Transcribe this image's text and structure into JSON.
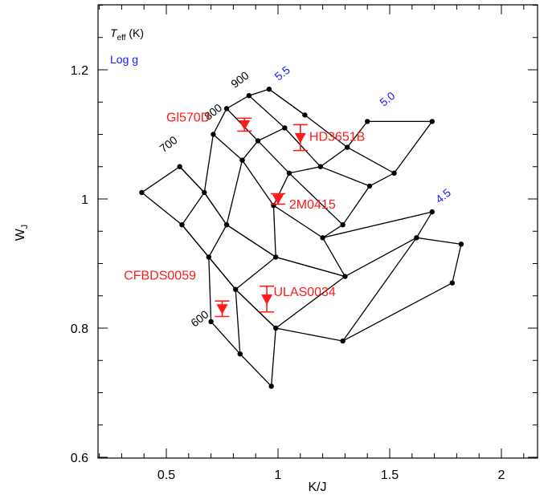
{
  "chart_data": {
    "type": "scatter",
    "xlabel": "K/J",
    "ylabel": "W",
    "ylabel_sub": "J",
    "xlim": [
      0.2,
      2.2
    ],
    "ylim": [
      0.6,
      1.3
    ],
    "xticks": [
      0.5,
      1,
      1.5,
      2
    ],
    "xtick_labels": [
      "0.5",
      "1",
      "1.5",
      "2"
    ],
    "yticks": [
      0.6,
      0.8,
      1.0,
      1.2
    ],
    "ytick_labels": [
      "0.6",
      "0.8",
      "1",
      "1.2"
    ],
    "x_minor_step": 0.1,
    "y_minor_step": 0.05,
    "grid": false,
    "legend": {
      "position": "top-left",
      "teff_prefix": "T",
      "teff_sub": "eff",
      "teff_suffix": " (K)",
      "logg": "Log g",
      "teff_color": "#000000",
      "logg_color": "#1a1aff"
    },
    "model_grid": {
      "temperatures": [
        600,
        700,
        800,
        900
      ],
      "temperature_labels": [
        "600",
        "700",
        "800",
        "900"
      ],
      "gravities": [
        4.5,
        5.0,
        5.5
      ],
      "gravity_labels": [
        "4.5",
        "5.0",
        "5.5"
      ],
      "teff_nodes": [
        [
          [
            0.7,
            0.81
          ],
          [
            0.83,
            0.76
          ],
          [
            0.97,
            0.71
          ]
        ],
        [
          [
            0.57,
            0.96
          ],
          [
            0.69,
            0.91
          ],
          [
            0.81,
            0.86
          ],
          [
            0.99,
            0.8
          ],
          [
            1.29,
            0.78
          ],
          [
            1.78,
            0.87
          ]
        ],
        [
          [
            0.39,
            1.01
          ],
          [
            0.56,
            1.05
          ],
          [
            0.67,
            1.01
          ],
          [
            0.77,
            0.96
          ],
          [
            0.99,
            0.91
          ],
          [
            1.3,
            0.88
          ],
          [
            1.62,
            0.94
          ],
          [
            1.82,
            0.93
          ]
        ],
        [
          [
            0.71,
            1.1
          ],
          [
            0.84,
            1.06
          ],
          [
            0.98,
            0.99
          ],
          [
            1.2,
            0.94
          ],
          [
            1.69,
            0.98
          ]
        ],
        [
          [
            0.77,
            1.14
          ],
          [
            0.91,
            1.09
          ],
          [
            1.05,
            1.04
          ],
          [
            1.29,
            0.96
          ]
        ],
        [
          [
            0.87,
            1.16
          ],
          [
            1.03,
            1.11
          ],
          [
            1.19,
            1.05
          ],
          [
            1.41,
            1.02
          ]
        ],
        [
          [
            0.96,
            1.17
          ],
          [
            1.12,
            1.13
          ],
          [
            1.31,
            1.08
          ],
          [
            1.52,
            1.04
          ]
        ],
        [
          [
            1.4,
            1.12
          ],
          [
            1.69,
            1.12
          ]
        ]
      ],
      "gravity_nodes": [
        [
          [
            0.57,
            0.96
          ],
          [
            0.67,
            1.01
          ],
          [
            0.71,
            1.1
          ],
          [
            0.77,
            1.14
          ],
          [
            0.87,
            1.16
          ],
          [
            0.96,
            1.17
          ],
          [
            1.12,
            1.13
          ]
        ],
        [
          [
            0.69,
            0.91
          ],
          [
            0.77,
            0.96
          ],
          [
            0.84,
            1.06
          ],
          [
            0.91,
            1.09
          ],
          [
            1.03,
            1.11
          ]
        ],
        [
          [
            0.81,
            0.86
          ],
          [
            0.99,
            0.91
          ],
          [
            0.98,
            0.99
          ],
          [
            1.05,
            1.04
          ],
          [
            1.19,
            1.05
          ],
          [
            1.31,
            1.08
          ],
          [
            1.4,
            1.12
          ]
        ],
        [
          [
            0.99,
            0.8
          ],
          [
            1.3,
            0.88
          ],
          [
            1.2,
            0.94
          ],
          [
            1.29,
            0.96
          ],
          [
            1.41,
            1.02
          ],
          [
            1.52,
            1.04
          ],
          [
            1.69,
            1.12
          ]
        ],
        [
          [
            1.29,
            0.78
          ],
          [
            1.62,
            0.94
          ],
          [
            1.69,
            0.98
          ]
        ],
        [
          [
            1.78,
            0.87
          ],
          [
            1.82,
            0.93
          ]
        ],
        [
          [
            0.39,
            1.01
          ],
          [
            0.57,
            0.96
          ],
          [
            0.69,
            0.91
          ],
          [
            0.81,
            0.86
          ],
          [
            0.99,
            0.8
          ]
        ],
        [
          [
            0.56,
            1.05
          ],
          [
            0.67,
            1.01
          ],
          [
            0.77,
            0.96
          ],
          [
            0.99,
            0.91
          ],
          [
            1.3,
            0.88
          ]
        ],
        [
          [
            0.7,
            0.81
          ],
          [
            0.69,
            0.91
          ]
        ],
        [
          [
            0.83,
            0.76
          ],
          [
            0.81,
            0.86
          ]
        ],
        [
          [
            0.97,
            0.71
          ],
          [
            0.99,
            0.8
          ]
        ]
      ],
      "nodes": [
        [
          0.39,
          1.01
        ],
        [
          0.56,
          1.05
        ],
        [
          0.57,
          0.96
        ],
        [
          0.67,
          1.01
        ],
        [
          0.69,
          0.91
        ],
        [
          0.7,
          0.81
        ],
        [
          0.71,
          1.1
        ],
        [
          0.77,
          1.14
        ],
        [
          0.77,
          0.96
        ],
        [
          0.81,
          0.86
        ],
        [
          0.83,
          0.76
        ],
        [
          0.84,
          1.06
        ],
        [
          0.87,
          1.16
        ],
        [
          0.91,
          1.09
        ],
        [
          0.96,
          1.17
        ],
        [
          0.97,
          0.71
        ],
        [
          0.98,
          0.99
        ],
        [
          0.99,
          0.91
        ],
        [
          0.99,
          0.8
        ],
        [
          1.03,
          1.11
        ],
        [
          1.05,
          1.04
        ],
        [
          1.12,
          1.13
        ],
        [
          1.19,
          1.05
        ],
        [
          1.2,
          0.94
        ],
        [
          1.29,
          0.78
        ],
        [
          1.29,
          0.96
        ],
        [
          1.3,
          0.88
        ],
        [
          1.31,
          1.08
        ],
        [
          1.4,
          1.12
        ],
        [
          1.41,
          1.02
        ],
        [
          1.52,
          1.04
        ],
        [
          1.62,
          0.94
        ],
        [
          1.69,
          1.12
        ],
        [
          1.69,
          0.98
        ],
        [
          1.78,
          0.87
        ],
        [
          1.82,
          0.93
        ]
      ],
      "temperature_label_anchors": [
        [
          0.66,
          0.81
        ],
        [
          0.52,
          1.08
        ],
        [
          0.72,
          1.13
        ],
        [
          0.84,
          1.18
        ]
      ],
      "gravity_label_anchors": [
        [
          1.75,
          1.0
        ],
        [
          1.5,
          1.15
        ],
        [
          1.03,
          1.19
        ]
      ],
      "line_color": "#000000",
      "temperature_label_color": "#000000",
      "gravity_label_color": "#1a1aff"
    },
    "objects": [
      {
        "name": "Gl570D",
        "label": "Gl570D",
        "x": 0.85,
        "y": 1.115,
        "yerr": 0.01,
        "label_x": 0.5,
        "label_y": 1.12
      },
      {
        "name": "HD3651B",
        "label": "HD3651B",
        "x": 1.1,
        "y": 1.095,
        "yerr": 0.02,
        "label_x": 1.14,
        "label_y": 1.09
      },
      {
        "name": "2M0415",
        "label": "2M0415",
        "x": 1.0,
        "y": 1.0,
        "yerr": 0.008,
        "label_x": 1.05,
        "label_y": 0.985
      },
      {
        "name": "CFBDS0059",
        "label": "CFBDS0059",
        "x": 0.75,
        "y": 0.83,
        "yerr": 0.012,
        "label_x": 0.31,
        "label_y": 0.875
      },
      {
        "name": "ULAS0034",
        "label": "ULAS0034",
        "x": 0.95,
        "y": 0.845,
        "yerr": 0.02,
        "label_x": 0.98,
        "label_y": 0.85
      }
    ],
    "object_color": "#ff1a1a"
  }
}
